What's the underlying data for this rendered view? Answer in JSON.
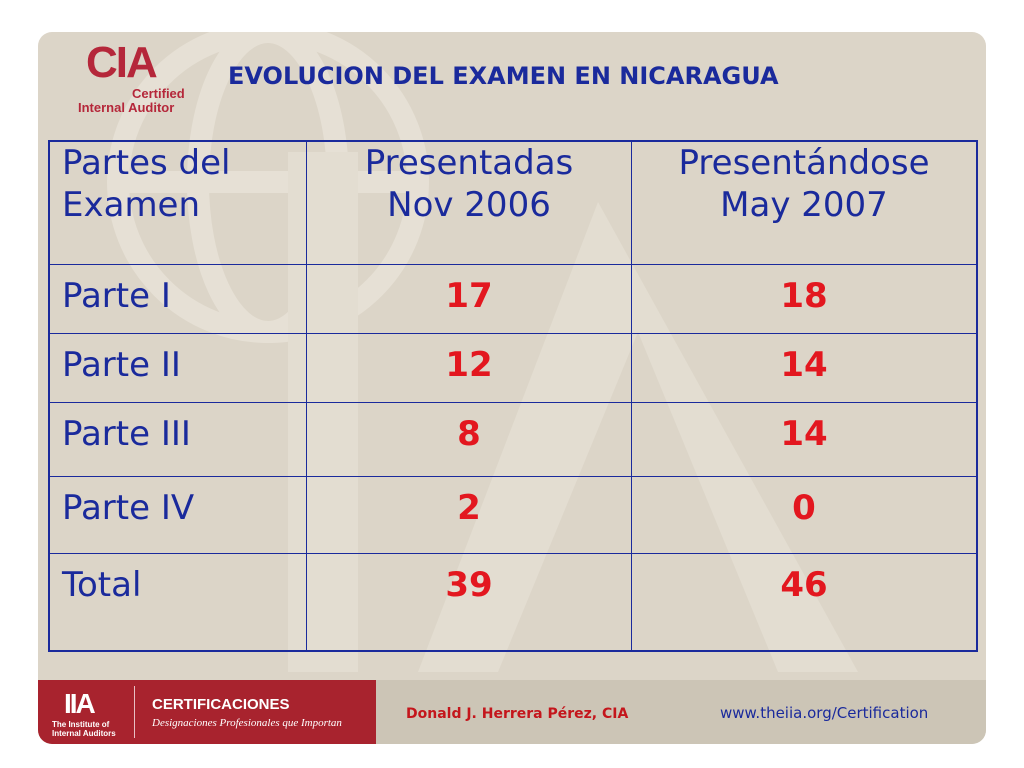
{
  "logo": {
    "mark": "CIA",
    "line1": "Certified",
    "line2": "Internal Auditor"
  },
  "title": "EVOLUCION DEL EXAMEN EN NICARAGUA",
  "table": {
    "headers": [
      [
        "Partes del",
        "Examen"
      ],
      [
        "Presentadas",
        "Nov 2006"
      ],
      [
        "Presentándose",
        "May 2007"
      ]
    ],
    "rows": [
      {
        "label": "Parte I",
        "nov2006": "17",
        "may2007": "18"
      },
      {
        "label": "Parte II",
        "nov2006": "12",
        "may2007": "14"
      },
      {
        "label": "Parte III",
        "nov2006": "8",
        "may2007": "14"
      },
      {
        "label": "Parte IV",
        "nov2006": "2",
        "may2007": "0"
      },
      {
        "label": "Total",
        "nov2006": "39",
        "may2007": "46"
      }
    ]
  },
  "footer": {
    "iia_mark": "IIA",
    "iia_text": "The Institute of Internal Auditors",
    "cert_title": "CERTIFICACIONES",
    "cert_subtitle": "Designaciones Profesionales que Importan",
    "author": "Donald J. Herrera Pérez, CIA",
    "url": "www.theiia.org/Certification"
  },
  "colors": {
    "background": "#dcd5c8",
    "header_blue": "#1a2a9c",
    "number_red": "#e3171f",
    "brand_red": "#a8232e"
  }
}
